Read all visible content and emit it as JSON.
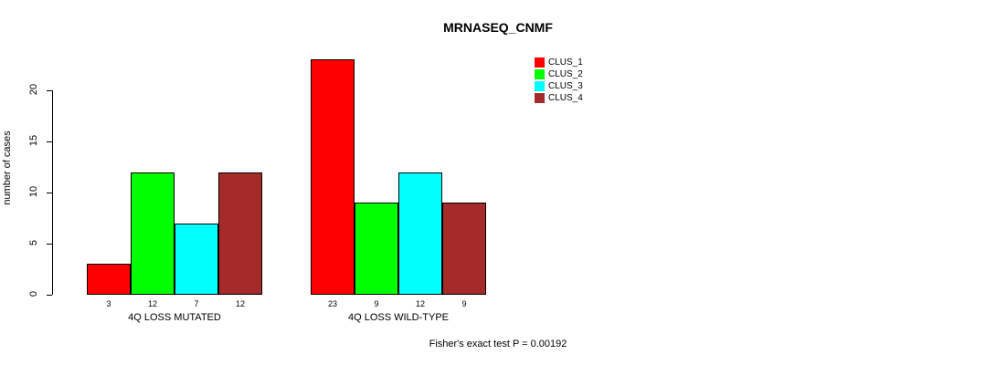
{
  "title": "MRNASEQ_CNMF",
  "ylabel": "number of cases",
  "footer": "Fisher's exact test P = 0.00192",
  "chart_data": {
    "type": "bar",
    "title": "MRNASEQ_CNMF",
    "ylabel": "number of cases",
    "xlabel": "",
    "categories": [
      "4Q LOSS MUTATED",
      "4Q LOSS WILD-TYPE"
    ],
    "series": [
      {
        "name": "CLUS_1",
        "color": "#FF0000",
        "values": [
          3,
          23
        ]
      },
      {
        "name": "CLUS_2",
        "color": "#00FF00",
        "values": [
          12,
          9
        ]
      },
      {
        "name": "CLUS_3",
        "color": "#00FFFF",
        "values": [
          7,
          12
        ]
      },
      {
        "name": "CLUS_4",
        "color": "#A52A2A",
        "values": [
          12,
          9
        ]
      }
    ],
    "bar_value_labels": [
      [
        3,
        12,
        7,
        12
      ],
      [
        23,
        9,
        12,
        9
      ]
    ],
    "yticks": [
      0,
      5,
      10,
      15,
      20
    ],
    "ylim": [
      0,
      23.5
    ],
    "grid": false,
    "legend_position": "top-right",
    "annotation": "Fisher's exact test P = 0.00192"
  },
  "legend": {
    "items": [
      {
        "label": "CLUS_1",
        "color": "#FF0000"
      },
      {
        "label": "CLUS_2",
        "color": "#00FF00"
      },
      {
        "label": "CLUS_3",
        "color": "#00FFFF"
      },
      {
        "label": "CLUS_4",
        "color": "#A52A2A"
      }
    ]
  }
}
